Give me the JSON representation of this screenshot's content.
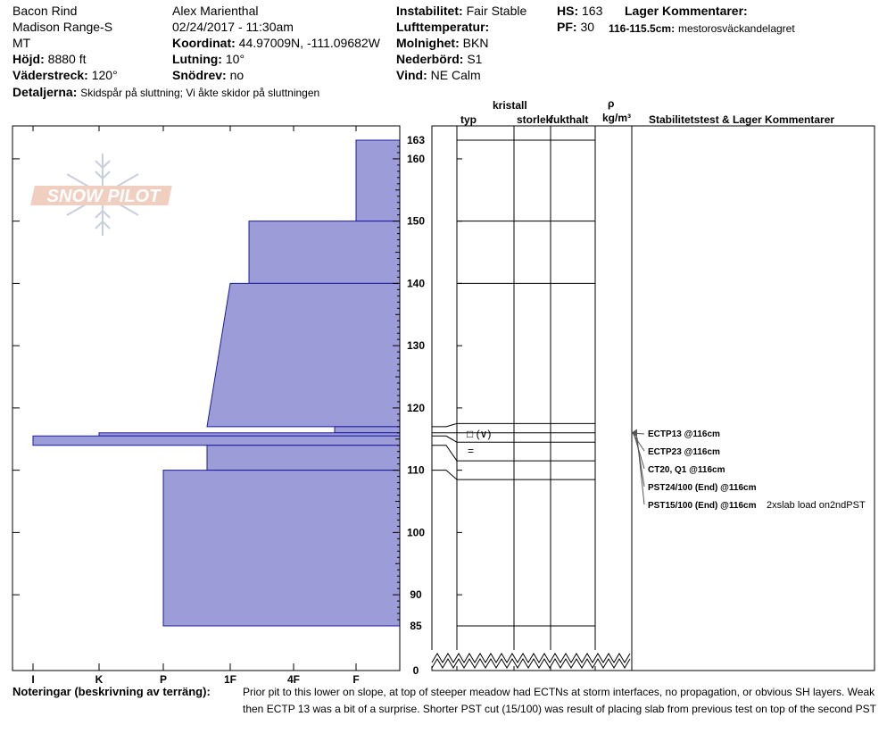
{
  "header": {
    "location": "Bacon Rind",
    "range": "Madison Range-S",
    "state": "MT",
    "elevation_label": "Höjd:",
    "elevation_value": "8880 ft",
    "aspect_label": "Väderstreck:",
    "aspect_value": "120°",
    "observer": "Alex Marienthal",
    "datetime": "02/24/2017 - 11:30am",
    "coord_label": "Koordinat:",
    "coord_value": "44.97009N, -111.09682W",
    "slope_label": "Lutning:",
    "slope_value": "10°",
    "drift_label": "Snödrev:",
    "drift_value": "no",
    "instability_label": "Instabilitet:",
    "instability_value": "Fair Stable",
    "airtemp_label": "Lufttemperatur:",
    "airtemp_value": "",
    "sky_label": "Molnighet:",
    "sky_value": "BKN",
    "precip_label": "Nederbörd:",
    "precip_value": "S1",
    "wind_label": "Vind:",
    "wind_value": "NE Calm",
    "hs_label": "HS:",
    "hs_value": "163",
    "pf_label": "PF:",
    "pf_value": "30",
    "layer_comments_label": "Lager Kommentarer:",
    "layer_comment_depth": "116-115.5cm:",
    "layer_comment_text": "mestorosväckandelagret",
    "details_label": "Detaljerna:",
    "details_value": "Skidspår på sluttning;  Vi åkte skidor på sluttningen"
  },
  "columns": {
    "crystal": "kristall",
    "type": "typ",
    "size": "storlek",
    "moisture": "fukthalt",
    "rho": "ρ",
    "density_unit": "kg/m³",
    "stability": "Stabilitetstest & Lager Kommentarer"
  },
  "hardness_labels": [
    "I",
    "K",
    "P",
    "1F",
    "4F",
    "F"
  ],
  "depth_labels": [
    "163",
    "160",
    "150",
    "140",
    "130",
    "120",
    "110",
    "100",
    "90",
    "85",
    "0"
  ],
  "logo_text": "SNOW PILOT",
  "layer_symbols": [
    "□ (∨)",
    "="
  ],
  "tests": [
    "ECTP13 @116cm",
    "ECTP23 @116cm",
    "CT20, Q1 @116cm",
    "PST24/100 (End) @116cm",
    "PST15/100 (End) @116cm"
  ],
  "test_note": "2xslab load on2ndPST",
  "notes_label": "Noteringar (beskrivning av terräng):",
  "notes_line1": "Prior pit to this lower on slope, at top of steeper meadow had ECTNs at storm interfaces, no propagation, or obvious SH layers. Weak",
  "notes_line2": "then ECTP 13 was a bit of a surprise. Shorter PST cut (15/100) was result of placing slab from previous test on top of the second PST",
  "chart_data": {
    "type": "snow-profile",
    "hs_cm": 163,
    "depth_axis_cm": [
      0,
      163
    ],
    "depth_ticks": [
      163,
      160,
      150,
      140,
      130,
      120,
      110,
      100,
      90,
      85,
      0
    ],
    "hardness_scale": [
      "I",
      "K",
      "P",
      "1F",
      "4F",
      "F"
    ],
    "layers": [
      {
        "top": 163,
        "bottom": 150,
        "hardness_top": "F",
        "hardness_bottom": "F"
      },
      {
        "top": 150,
        "bottom": 140,
        "hardness_top": "1F+",
        "hardness_bottom": "1F+"
      },
      {
        "top": 140,
        "bottom": 117,
        "hardness_top": "1F",
        "hardness_bottom": "1F-"
      },
      {
        "top": 117,
        "bottom": 116,
        "hardness_top": "F+",
        "hardness_bottom": "F+"
      },
      {
        "top": 116,
        "bottom": 115.5,
        "hardness_top": "K-",
        "hardness_bottom": "K-"
      },
      {
        "top": 115.5,
        "bottom": 114,
        "hardness_top": "I",
        "hardness_bottom": "I"
      },
      {
        "top": 114,
        "bottom": 110,
        "hardness_top": "1F-",
        "hardness_bottom": "1F-"
      },
      {
        "top": 110,
        "bottom": 85,
        "hardness_top": "P",
        "hardness_bottom": "P"
      }
    ],
    "grid_lines": [
      163,
      150,
      140,
      117.5,
      116,
      114.5,
      111.5,
      108.5,
      85
    ]
  }
}
